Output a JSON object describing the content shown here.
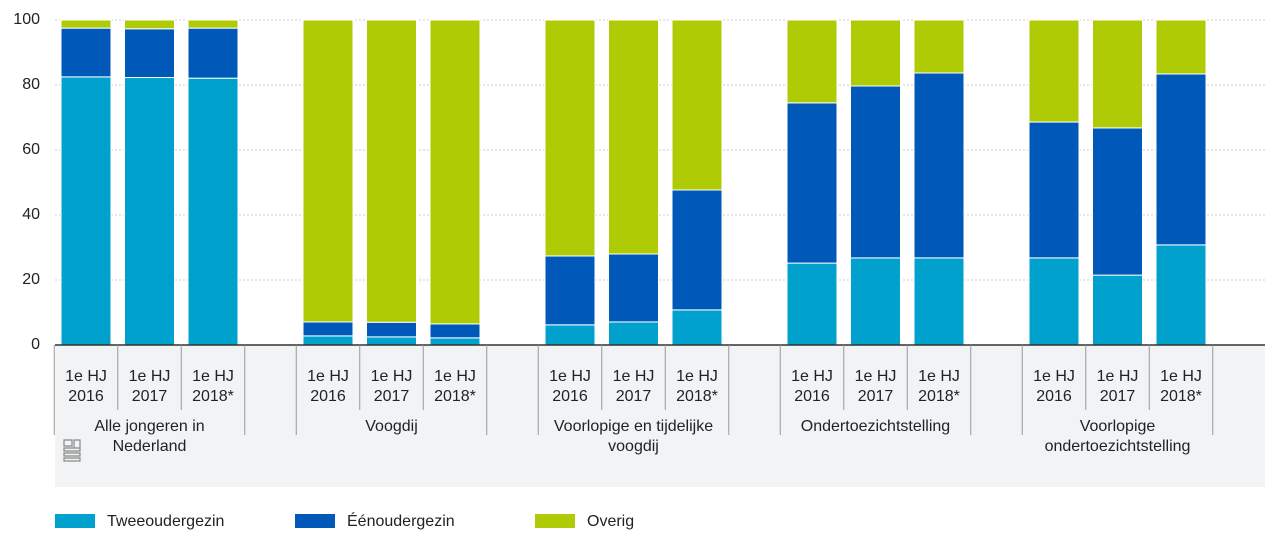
{
  "chart_data": {
    "type": "stacked-bar",
    "categories": [
      "1e HJ 2016",
      "1e HJ 2017",
      "1e HJ 2018*",
      "1e HJ 2016",
      "1e HJ 2017",
      "1e HJ 2018*",
      "1e HJ 2016",
      "1e HJ 2017",
      "1e HJ 2018*",
      "1e HJ 2016",
      "1e HJ 2017",
      "1e HJ 2018*",
      "1e HJ 2016",
      "1e HJ 2017",
      "1e HJ 2018*"
    ],
    "groups": [
      "Alle jongeren in Nederland",
      "Voogdij",
      "Voorlopige en tijdelijke voogdij",
      "Ondertoezichtstelling",
      "Voorlopige ondertoezichtstelling"
    ],
    "series": [
      {
        "name": "Tweeoudergezin",
        "color": "#00a1cd",
        "values": [
          82.5,
          82.3,
          82.1,
          2.8,
          2.5,
          2.2,
          6.2,
          7.1,
          10.8,
          25.2,
          26.8,
          26.8,
          26.8,
          21.5,
          30.8
        ]
      },
      {
        "name": "Éénoudergezin",
        "color": "#0058b8",
        "values": [
          15,
          15,
          15.4,
          4.3,
          4.5,
          4.3,
          21.2,
          20.9,
          36.9,
          49.3,
          52.9,
          56.9,
          41.8,
          45.3,
          52.6
        ]
      },
      {
        "name": "Overig",
        "color": "#afcb05",
        "values": [
          2.5,
          2.7,
          2.5,
          92.9,
          93,
          93.5,
          72.6,
          72,
          52.3,
          25.5,
          20.3,
          16.3,
          31.4,
          33.2,
          16.6
        ]
      }
    ],
    "ylim": [
      0,
      100
    ],
    "yticks": [
      0,
      20,
      40,
      60,
      80,
      100
    ],
    "grid": true,
    "legend": "bottom-left"
  }
}
